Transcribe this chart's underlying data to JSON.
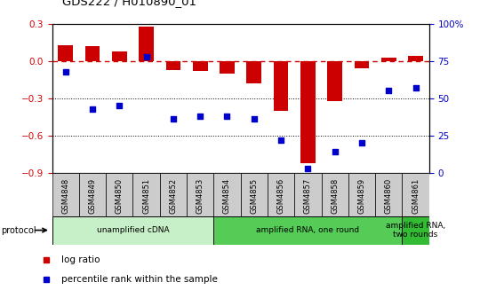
{
  "title": "GDS222 / H010890_01",
  "samples": [
    "GSM4848",
    "GSM4849",
    "GSM4850",
    "GSM4851",
    "GSM4852",
    "GSM4853",
    "GSM4854",
    "GSM4855",
    "GSM4856",
    "GSM4857",
    "GSM4858",
    "GSM4859",
    "GSM4860",
    "GSM4861"
  ],
  "log_ratio": [
    0.13,
    0.12,
    0.08,
    0.28,
    -0.07,
    -0.08,
    -0.1,
    -0.18,
    -0.4,
    -0.82,
    -0.32,
    -0.06,
    0.03,
    0.04
  ],
  "percentile": [
    68,
    43,
    45,
    78,
    36,
    38,
    38,
    36,
    22,
    3,
    14,
    20,
    55,
    57
  ],
  "ylim_left": [
    -0.9,
    0.3
  ],
  "ylim_right": [
    0,
    100
  ],
  "yticks_left": [
    -0.9,
    -0.6,
    -0.3,
    0.0,
    0.3
  ],
  "yticks_right": [
    0,
    25,
    50,
    75,
    100
  ],
  "ytick_labels_right": [
    "0",
    "25",
    "50",
    "75",
    "100%"
  ],
  "bar_color": "#cc0000",
  "dot_color": "#0000cc",
  "hline_color": "#cc0000",
  "dotted_line_color": "#000000",
  "protocol_groups": [
    {
      "label": "unamplified cDNA",
      "start": 0,
      "end": 5,
      "color": "#c8f0c8"
    },
    {
      "label": "amplified RNA, one round",
      "start": 6,
      "end": 12,
      "color": "#55cc55"
    },
    {
      "label": "amplified RNA,\ntwo rounds",
      "start": 13,
      "end": 13,
      "color": "#33bb33"
    }
  ],
  "legend_items": [
    {
      "label": "log ratio",
      "color": "#cc0000"
    },
    {
      "label": "percentile rank within the sample",
      "color": "#0000cc"
    }
  ],
  "background_color": "#ffffff",
  "tick_label_color_left": "#cc0000",
  "tick_label_color_right": "#0000cc",
  "sample_box_color": "#cccccc",
  "plot_bg": "#ffffff"
}
